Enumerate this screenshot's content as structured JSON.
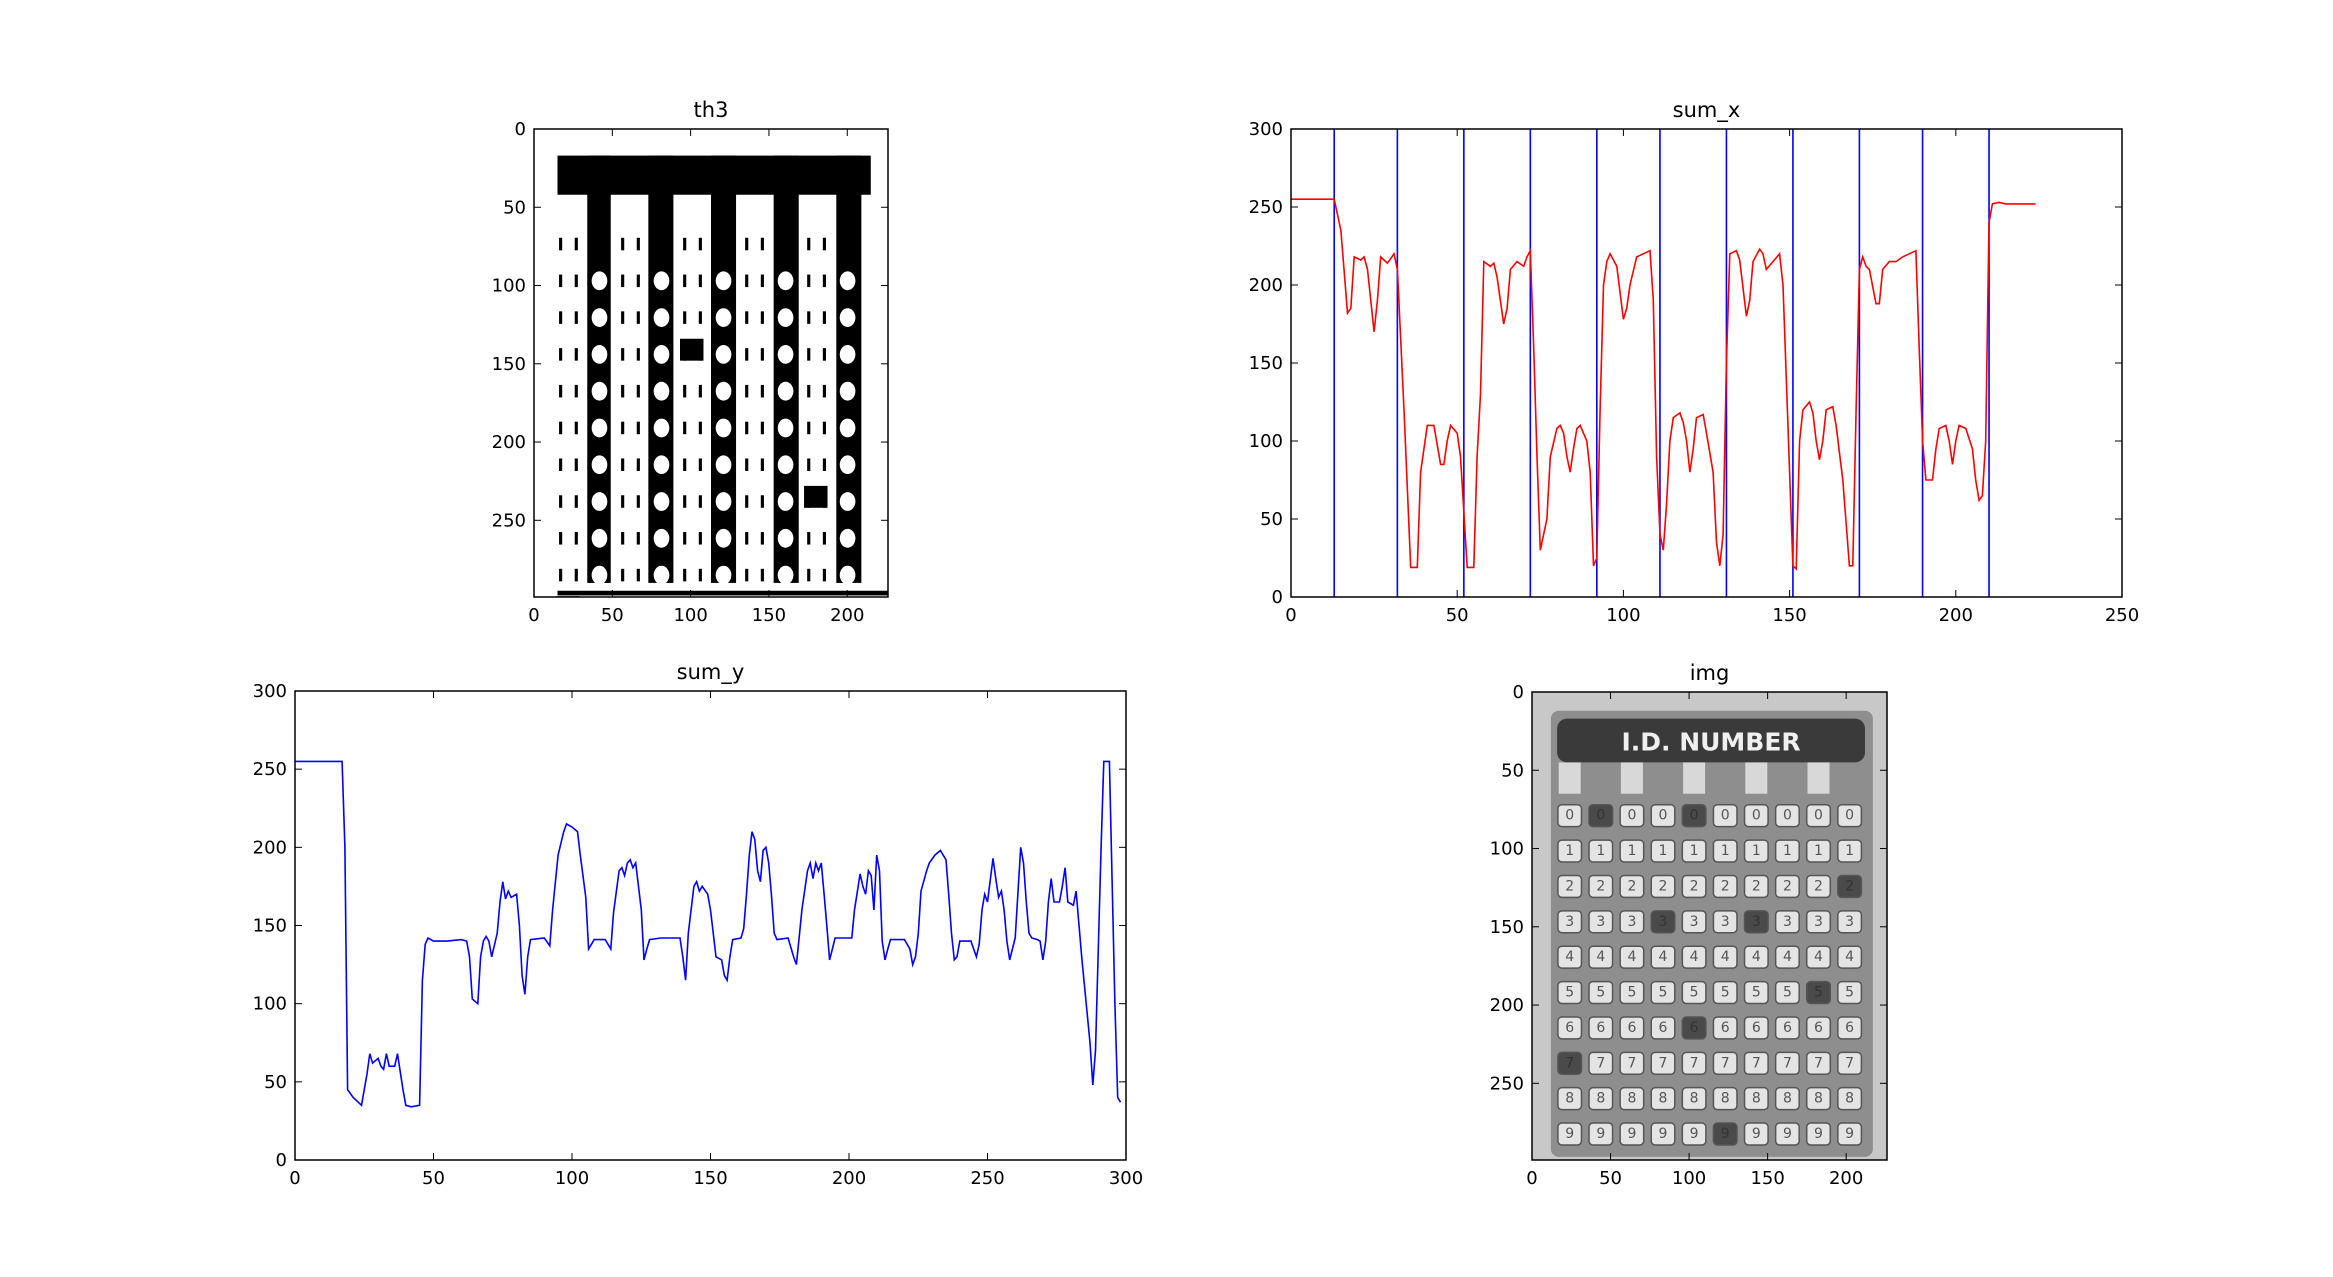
{
  "chart_data": [
    {
      "type": "image",
      "title": "th3",
      "image": "binary",
      "xlim": [
        0,
        226
      ],
      "ylim": [
        299,
        0
      ],
      "xticks": [
        0,
        50,
        100,
        150,
        200
      ],
      "yticks": [
        0,
        50,
        100,
        150,
        200,
        250
      ]
    },
    {
      "type": "line",
      "title": "sum_x",
      "color": "#ff0000",
      "vline_color": "#0000ff",
      "vlines": [
        13,
        32,
        52,
        72,
        92,
        111,
        131,
        151,
        171,
        190,
        210
      ],
      "x": [
        0,
        13,
        15,
        17,
        18,
        19,
        21,
        22,
        23,
        25,
        26,
        27,
        29,
        31,
        32,
        34,
        36,
        38,
        39,
        41,
        43,
        45,
        46,
        47,
        48,
        50,
        51,
        52,
        53,
        55,
        56,
        57,
        58,
        60,
        61,
        62,
        64,
        65,
        66,
        68,
        70,
        71,
        72,
        73,
        74,
        75,
        77,
        78,
        80,
        81,
        82,
        83,
        84,
        85,
        86,
        87,
        89,
        90,
        91,
        92,
        93,
        94,
        95,
        96,
        98,
        100,
        101,
        102,
        104,
        106,
        108,
        109,
        110,
        111,
        112,
        113,
        114,
        115,
        117,
        118,
        119,
        120,
        121,
        122,
        124,
        125,
        127,
        128,
        129,
        130,
        131,
        132,
        134,
        135,
        137,
        138,
        139,
        141,
        142,
        143,
        145,
        147,
        148,
        150,
        151,
        152,
        153,
        154,
        156,
        157,
        158,
        159,
        160,
        161,
        163,
        164,
        166,
        168,
        169,
        170,
        171,
        172,
        173,
        174,
        176,
        177,
        178,
        180,
        182,
        184,
        186,
        188,
        189,
        190,
        191,
        193,
        194,
        195,
        197,
        198,
        199,
        200,
        201,
        203,
        205,
        206,
        207,
        208,
        209,
        210,
        211,
        213,
        215,
        224
      ],
      "values": [
        255,
        255,
        235,
        182,
        185,
        218,
        216,
        218,
        210,
        170,
        190,
        218,
        214,
        220,
        210,
        120,
        19,
        19,
        80,
        110,
        110,
        85,
        85,
        100,
        110,
        105,
        90,
        55,
        19,
        19,
        90,
        130,
        215,
        212,
        214,
        205,
        175,
        185,
        210,
        215,
        212,
        218,
        222,
        160,
        90,
        30,
        50,
        90,
        108,
        110,
        105,
        90,
        80,
        95,
        108,
        110,
        100,
        80,
        20,
        25,
        120,
        200,
        215,
        220,
        212,
        178,
        185,
        200,
        218,
        220,
        222,
        190,
        90,
        40,
        30,
        60,
        100,
        115,
        118,
        112,
        100,
        80,
        95,
        115,
        117,
        105,
        80,
        35,
        20,
        40,
        150,
        220,
        222,
        216,
        180,
        190,
        215,
        223,
        220,
        210,
        215,
        220,
        200,
        80,
        20,
        18,
        100,
        120,
        125,
        118,
        100,
        88,
        100,
        120,
        122,
        110,
        75,
        20,
        20,
        120,
        210,
        218,
        212,
        210,
        188,
        188,
        210,
        215,
        215,
        218,
        220,
        222,
        160,
        100,
        75,
        75,
        95,
        108,
        110,
        100,
        85,
        100,
        110,
        108,
        95,
        75,
        62,
        65,
        100,
        240,
        252,
        253,
        252,
        252
      ],
      "xlim": [
        0,
        250
      ],
      "ylim": [
        0,
        300
      ],
      "xticks": [
        0,
        50,
        100,
        150,
        200,
        250
      ],
      "yticks": [
        0,
        50,
        100,
        150,
        200,
        250,
        300
      ]
    },
    {
      "type": "line",
      "title": "sum_y",
      "color": "#0000ff",
      "x": [
        0,
        17,
        18,
        19,
        21,
        24,
        26,
        27,
        28,
        30,
        31,
        32,
        33,
        34,
        36,
        37,
        39,
        40,
        42,
        45,
        46,
        47,
        48,
        50,
        55,
        60,
        62,
        63,
        64,
        66,
        67,
        68,
        69,
        70,
        71,
        73,
        74,
        75,
        76,
        77,
        78,
        80,
        81,
        82,
        83,
        84,
        85,
        90,
        92,
        93,
        95,
        97,
        98,
        100,
        102,
        103,
        105,
        106,
        107,
        108,
        112,
        114,
        115,
        117,
        118,
        119,
        120,
        121,
        122,
        123,
        125,
        126,
        127,
        128,
        132,
        139,
        140,
        141,
        142,
        144,
        145,
        146,
        147,
        149,
        150,
        152,
        154,
        155,
        156,
        157,
        158,
        161,
        162,
        163,
        164,
        165,
        166,
        167,
        168,
        169,
        170,
        171,
        172,
        173,
        174,
        178,
        180,
        181,
        182,
        183,
        185,
        186,
        187,
        188,
        189,
        190,
        191,
        192,
        193,
        194,
        195,
        201,
        202,
        204,
        205,
        206,
        207,
        208,
        209,
        210,
        211,
        212,
        213,
        214,
        215,
        220,
        222,
        223,
        224,
        225,
        226,
        228,
        229,
        231,
        233,
        235,
        236,
        237,
        238,
        239,
        240,
        244,
        246,
        247,
        248,
        249,
        250,
        252,
        253,
        254,
        255,
        256,
        257,
        258,
        259,
        260,
        262,
        263,
        264,
        265,
        266,
        268,
        269,
        270,
        271,
        272,
        273,
        274,
        276,
        277,
        278,
        279,
        281,
        282,
        284,
        287,
        288,
        289,
        291,
        292,
        294,
        296,
        297,
        298
      ],
      "values": [
        255,
        255,
        200,
        45,
        40,
        35,
        55,
        68,
        62,
        65,
        60,
        58,
        68,
        60,
        60,
        68,
        45,
        35,
        34,
        35,
        115,
        138,
        142,
        140,
        140,
        141,
        140,
        130,
        103,
        100,
        130,
        140,
        143,
        140,
        130,
        145,
        165,
        178,
        167,
        172,
        168,
        170,
        150,
        118,
        106,
        130,
        141,
        142,
        137,
        160,
        195,
        210,
        215,
        213,
        210,
        195,
        168,
        135,
        138,
        141,
        141,
        135,
        158,
        185,
        187,
        182,
        190,
        192,
        187,
        190,
        160,
        128,
        135,
        141,
        142,
        142,
        130,
        115,
        145,
        175,
        178,
        172,
        175,
        170,
        160,
        130,
        128,
        118,
        115,
        130,
        141,
        142,
        148,
        170,
        195,
        210,
        205,
        185,
        178,
        198,
        200,
        190,
        170,
        145,
        141,
        142,
        130,
        125,
        142,
        160,
        185,
        190,
        180,
        190,
        185,
        190,
        170,
        150,
        128,
        135,
        142,
        142,
        160,
        183,
        175,
        170,
        185,
        182,
        160,
        195,
        185,
        140,
        128,
        135,
        141,
        141,
        135,
        125,
        130,
        145,
        172,
        185,
        190,
        195,
        198,
        192,
        170,
        145,
        128,
        130,
        140,
        140,
        130,
        138,
        160,
        170,
        165,
        193,
        180,
        168,
        172,
        160,
        140,
        128,
        135,
        142,
        200,
        190,
        165,
        145,
        142,
        141,
        140,
        128,
        140,
        165,
        180,
        165,
        165,
        175,
        187,
        165,
        163,
        172,
        130,
        75,
        48,
        70,
        200,
        255,
        255,
        100,
        40,
        37
      ],
      "xlim": [
        0,
        300
      ],
      "ylim": [
        0,
        300
      ],
      "xticks": [
        0,
        50,
        100,
        150,
        200,
        250,
        300
      ],
      "yticks": [
        0,
        50,
        100,
        150,
        200,
        250,
        300
      ]
    },
    {
      "type": "image",
      "title": "img",
      "image": "photo",
      "header": "I.D. NUMBER",
      "digits": [
        "0",
        "1",
        "2",
        "3",
        "4",
        "5",
        "6",
        "7",
        "8",
        "9"
      ],
      "xlim": [
        0,
        226
      ],
      "ylim": [
        299,
        0
      ],
      "xticks": [
        0,
        50,
        100,
        150,
        200
      ],
      "yticks": [
        0,
        50,
        100,
        150,
        200,
        250
      ]
    }
  ]
}
